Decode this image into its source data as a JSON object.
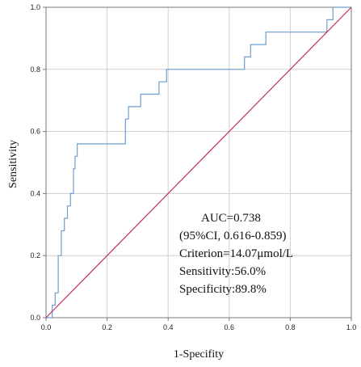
{
  "chart_data": {
    "type": "line",
    "xlabel": "1-Specifity",
    "ylabel": "Sensitivity",
    "xlim": [
      0.0,
      1.0
    ],
    "ylim": [
      0.0,
      1.0
    ],
    "x_ticks": [
      "0.0",
      "0.2",
      "0.4",
      "0.6",
      "0.8",
      "1.0"
    ],
    "y_ticks": [
      "0.0",
      "0.2",
      "0.4",
      "0.6",
      "0.8",
      "1.0"
    ],
    "grid": true,
    "series": [
      {
        "color": "#6E9FCF",
        "points": [
          [
            0.0,
            0.0
          ],
          [
            0.02,
            0.0
          ],
          [
            0.02,
            0.04
          ],
          [
            0.03,
            0.04
          ],
          [
            0.03,
            0.08
          ],
          [
            0.04,
            0.08
          ],
          [
            0.04,
            0.2
          ],
          [
            0.05,
            0.2
          ],
          [
            0.05,
            0.28
          ],
          [
            0.06,
            0.28
          ],
          [
            0.06,
            0.32
          ],
          [
            0.07,
            0.32
          ],
          [
            0.07,
            0.36
          ],
          [
            0.08,
            0.36
          ],
          [
            0.08,
            0.4
          ],
          [
            0.09,
            0.4
          ],
          [
            0.09,
            0.48
          ],
          [
            0.095,
            0.48
          ],
          [
            0.095,
            0.52
          ],
          [
            0.102,
            0.52
          ],
          [
            0.102,
            0.56
          ],
          [
            0.26,
            0.56
          ],
          [
            0.26,
            0.64
          ],
          [
            0.27,
            0.64
          ],
          [
            0.27,
            0.68
          ],
          [
            0.31,
            0.68
          ],
          [
            0.31,
            0.72
          ],
          [
            0.37,
            0.72
          ],
          [
            0.37,
            0.76
          ],
          [
            0.395,
            0.76
          ],
          [
            0.395,
            0.8
          ],
          [
            0.65,
            0.8
          ],
          [
            0.65,
            0.84
          ],
          [
            0.67,
            0.84
          ],
          [
            0.67,
            0.88
          ],
          [
            0.72,
            0.88
          ],
          [
            0.72,
            0.92
          ],
          [
            0.92,
            0.92
          ],
          [
            0.92,
            0.96
          ],
          [
            0.94,
            0.96
          ],
          [
            0.94,
            1.0
          ],
          [
            1.0,
            1.0
          ]
        ]
      },
      {
        "color": "#C0305A",
        "points": [
          [
            0.0,
            0.0
          ],
          [
            1.0,
            1.0
          ]
        ]
      }
    ],
    "annotations": [
      "AUC=0.738",
      "(95%CI, 0.616-0.859)",
      "Criterion=14.07μmol/L",
      "Sensitivity:56.0%",
      "Specificity:89.8%"
    ],
    "colors": {
      "grid": "#CFCFCF",
      "axis": "#777777",
      "roc": "#6E9FCF",
      "reference": "#C0305A"
    }
  }
}
